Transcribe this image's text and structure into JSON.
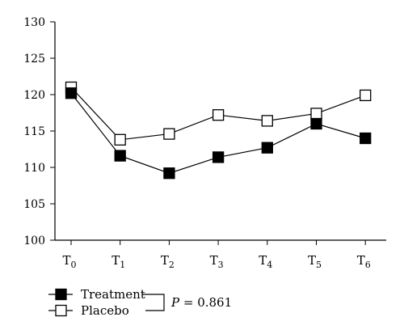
{
  "chart_data": {
    "type": "line",
    "categories": [
      "T0",
      "T1",
      "T2",
      "T3",
      "T4",
      "T5",
      "T6"
    ],
    "category_labels": [
      {
        "base": "T",
        "sub": "0"
      },
      {
        "base": "T",
        "sub": "1"
      },
      {
        "base": "T",
        "sub": "2"
      },
      {
        "base": "T",
        "sub": "3"
      },
      {
        "base": "T",
        "sub": "4"
      },
      {
        "base": "T",
        "sub": "5"
      },
      {
        "base": "T",
        "sub": "6"
      }
    ],
    "series": [
      {
        "name": "Treatment",
        "marker": "filled-square",
        "values": [
          120.2,
          111.6,
          109.2,
          111.4,
          112.7,
          116.0,
          114.0
        ]
      },
      {
        "name": "Placebo",
        "marker": "open-square",
        "values": [
          121.0,
          113.8,
          114.6,
          117.2,
          116.4,
          117.4,
          119.9
        ]
      }
    ],
    "ylim": [
      100,
      130
    ],
    "yticks": [
      "100",
      "105",
      "110",
      "115",
      "120",
      "125",
      "130"
    ],
    "title": "",
    "xlabel": "",
    "ylabel": "",
    "grid": false,
    "legend_position": "bottom-left",
    "annotation": {
      "italic": "P",
      "text": " = 0.861"
    }
  }
}
